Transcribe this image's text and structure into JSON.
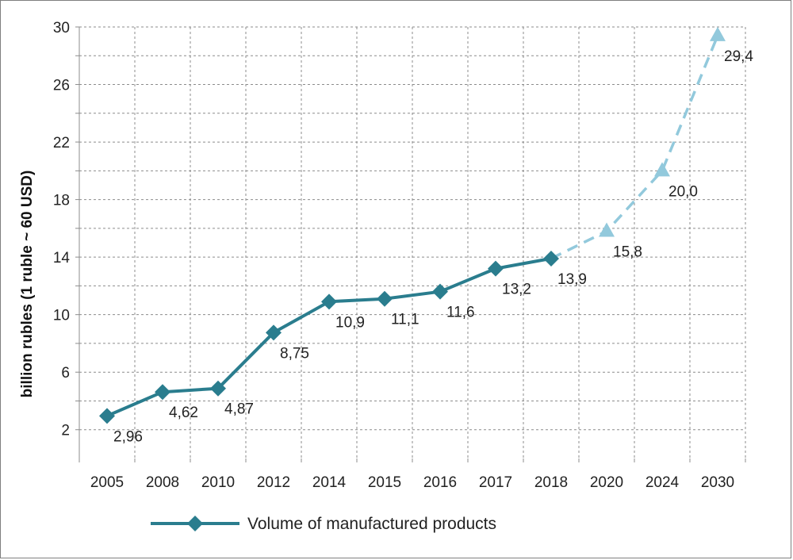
{
  "chart_data": {
    "type": "line",
    "categories": [
      "2005",
      "2008",
      "2010",
      "2012",
      "2014",
      "2015",
      "2016",
      "2017",
      "2018",
      "2020",
      "2024",
      "2030"
    ],
    "ylabel": "billion rubles (1 ruble ~ 60 USD)",
    "xlabel": "",
    "ylim": [
      0,
      30
    ],
    "yticks": [
      2,
      6,
      10,
      14,
      18,
      22,
      26,
      30
    ],
    "grid": true,
    "legend_position": "bottom",
    "series": [
      {
        "name": "Volume of manufactured products",
        "style": "solid",
        "marker": "diamond",
        "color": "#2a7d8e",
        "points": [
          {
            "x": "2005",
            "y": 2.96,
            "label": "2,96"
          },
          {
            "x": "2008",
            "y": 4.62,
            "label": "4,62"
          },
          {
            "x": "2010",
            "y": 4.87,
            "label": "4,87"
          },
          {
            "x": "2012",
            "y": 8.75,
            "label": "8,75"
          },
          {
            "x": "2014",
            "y": 10.9,
            "label": "10,9"
          },
          {
            "x": "2015",
            "y": 11.1,
            "label": "11,1"
          },
          {
            "x": "2016",
            "y": 11.6,
            "label": "11,6"
          },
          {
            "x": "2017",
            "y": 13.2,
            "label": "13,2"
          },
          {
            "x": "2018",
            "y": 13.9,
            "label": "13,9"
          }
        ]
      },
      {
        "name": "",
        "style": "dashed",
        "marker": "triangle",
        "color": "#92c9dc",
        "points": [
          {
            "x": "2018",
            "y": 13.9,
            "label": ""
          },
          {
            "x": "2020",
            "y": 15.8,
            "label": "15,8"
          },
          {
            "x": "2024",
            "y": 20.0,
            "label": "20,0"
          },
          {
            "x": "2030",
            "y": 29.4,
            "label": "29,4"
          }
        ]
      }
    ]
  }
}
